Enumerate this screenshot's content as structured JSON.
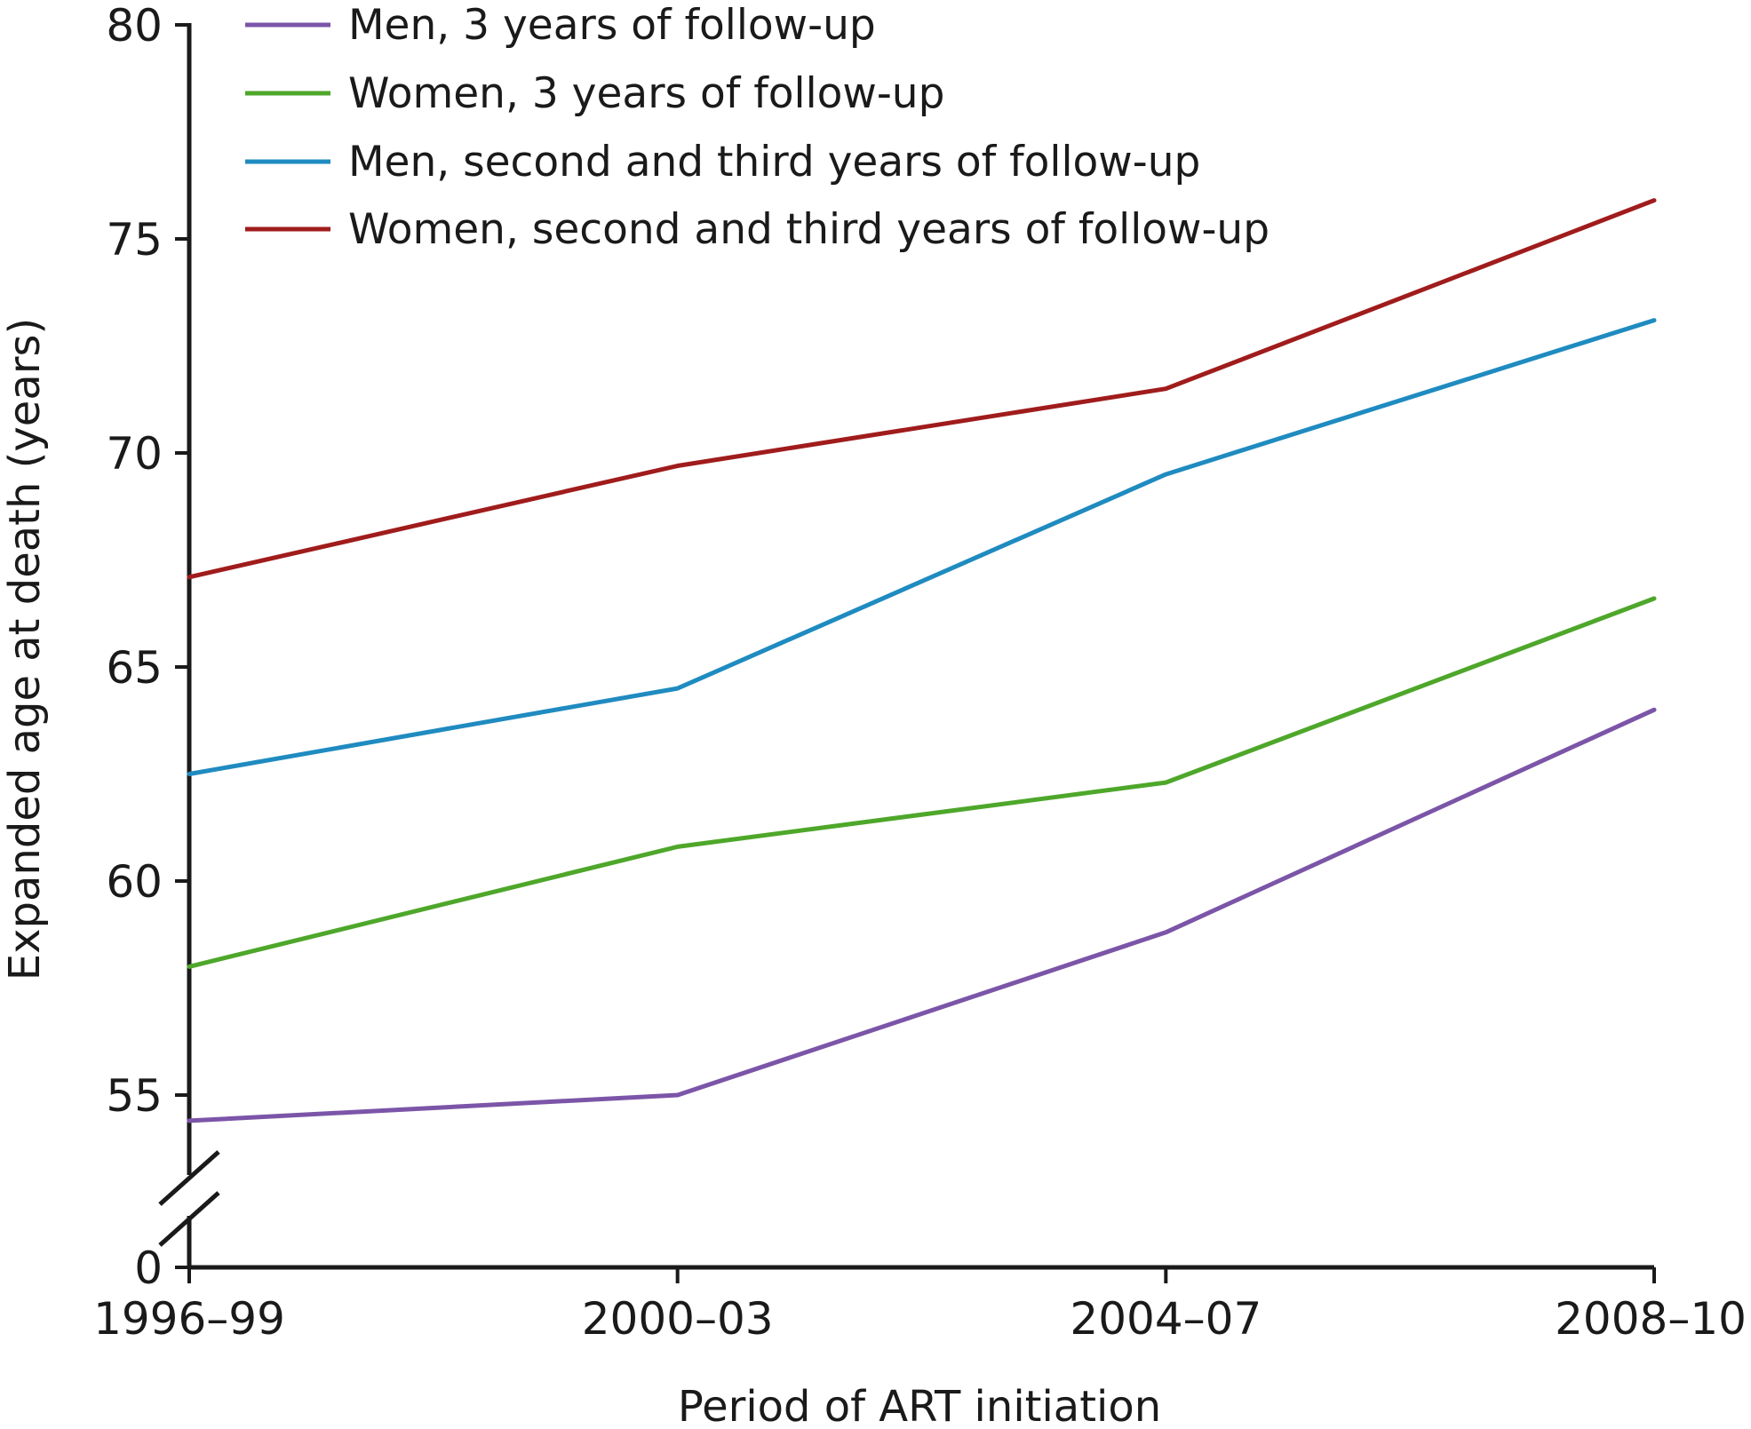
{
  "chart_data": {
    "type": "line",
    "title": "",
    "xlabel": "Period of ART initiation",
    "ylabel": "Expanded age at death (years)",
    "categories": [
      "1996–99",
      "2000–03",
      "2004–07",
      "2008–10"
    ],
    "y_ticks": [
      0,
      55,
      60,
      65,
      70,
      75,
      80
    ],
    "ylim": [
      55,
      80
    ],
    "y_axis_break": true,
    "grid": false,
    "legend_position": "top-left",
    "series": [
      {
        "name": "Men, 3 years of follow-up",
        "color": "#7b55a8",
        "values": [
          54.4,
          55.0,
          58.8,
          64.0
        ]
      },
      {
        "name": "Women, 3 years of follow-up",
        "color": "#4ea72a",
        "values": [
          58.0,
          60.8,
          62.3,
          66.6
        ]
      },
      {
        "name": "Men, second and third years of follow-up",
        "color": "#1f8bc0",
        "values": [
          62.5,
          64.5,
          69.5,
          73.1
        ]
      },
      {
        "name": "Women, second and third years of follow-up",
        "color": "#a01c1c",
        "values": [
          67.1,
          69.7,
          71.5,
          75.9
        ]
      }
    ]
  }
}
